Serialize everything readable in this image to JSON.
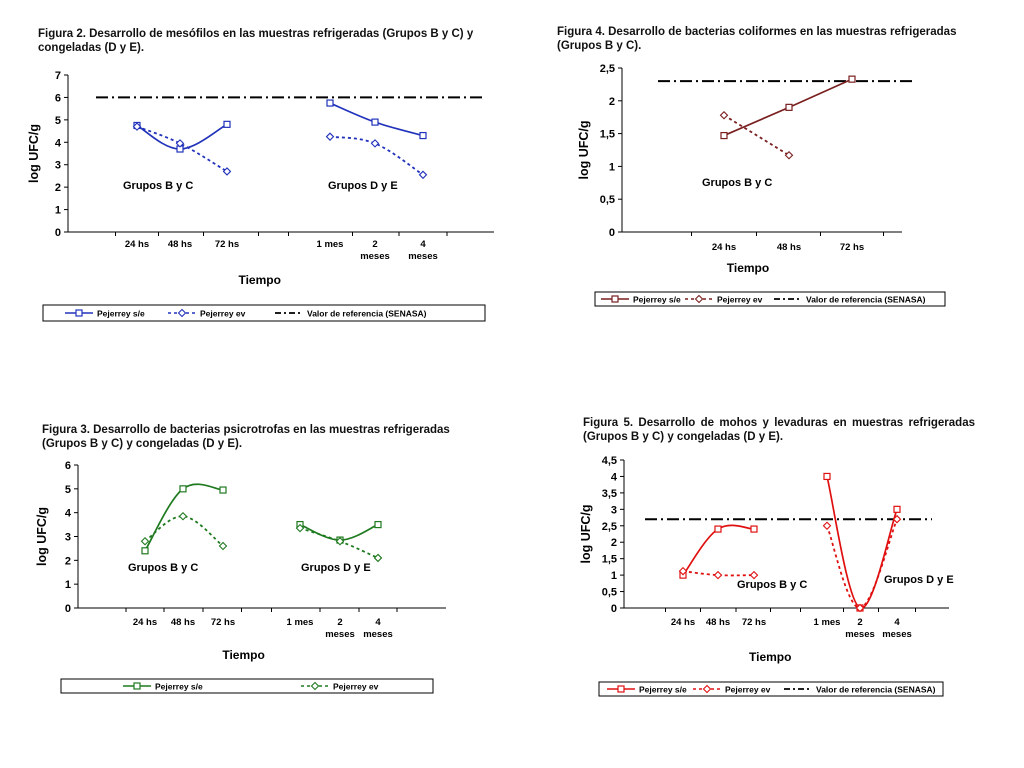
{
  "captions": {
    "fig2": "Figura 2. Desarrollo de mesófilos en las muestras refrigeradas (Grupos B y C) y congeladas (D y E).",
    "fig4": "Figura 4. Desarrollo de bacterias coliformes en las muestras refrigeradas (Grupos B y C).",
    "fig3": "Figura 3. Desarrollo de bacterias psicrotrofas en las muestras refrigeradas (Grupos B y C) y congeladas (D y E).",
    "fig5": "Figura 5. Desarrollo de mohos y levaduras en muestras refrigeradas (Grupos B y C) y congeladas (D y E)."
  },
  "chart_data": [
    {
      "id": "fig2",
      "type": "line",
      "color": "#2233bb",
      "xlabel": "Tiempo",
      "ylabel": "log UFC/g",
      "ylim": [
        0,
        7
      ],
      "yticks": [
        "0",
        "1",
        "2",
        "3",
        "4",
        "5",
        "6",
        "7"
      ],
      "categories": [
        "24 hs",
        "48 hs",
        "72 hs",
        "1 mes",
        "2 meses",
        "4 meses"
      ],
      "groups": [
        "Grupos B y C",
        "Grupos D y E"
      ],
      "series": [
        {
          "name": "Pejerrey s/e",
          "style": "solid",
          "marker": "square",
          "values": [
            4.75,
            3.7,
            4.8,
            5.75,
            4.9,
            4.3
          ]
        },
        {
          "name": "Pejerrey ev",
          "style": "dotted",
          "marker": "diamond",
          "values": [
            4.7,
            3.95,
            2.7,
            4.25,
            3.95,
            2.55
          ]
        }
      ],
      "reference": {
        "name": "Valor de referencia (SENASA)",
        "value": 6
      },
      "legend": [
        "Pejerrey s/e",
        "Pejerrey ev",
        "Valor de referencia (SENASA)"
      ]
    },
    {
      "id": "fig4",
      "type": "line",
      "color": "#7a1f1f",
      "xlabel": "Tiempo",
      "ylabel": "log UFC/g",
      "ylim": [
        0,
        2.5
      ],
      "yticks": [
        "0",
        "0,5",
        "1",
        "1,5",
        "2",
        "2,5"
      ],
      "categories": [
        "24 hs",
        "48 hs",
        "72 hs"
      ],
      "groups": [
        "Grupos B y C"
      ],
      "series": [
        {
          "name": "Pejerrey s/e",
          "style": "solid",
          "marker": "square",
          "values": [
            1.47,
            1.9,
            2.33
          ]
        },
        {
          "name": "Pejerrey ev",
          "style": "dotted",
          "marker": "diamond",
          "values": [
            1.78,
            1.17,
            null
          ]
        }
      ],
      "reference": {
        "name": "Valor de referencia (SENASA)",
        "value": 2.3
      },
      "legend": [
        "Pejerrey s/e",
        "Pejerrey ev",
        "Valor de referencia (SENASA)"
      ]
    },
    {
      "id": "fig3",
      "type": "line",
      "color": "#1f7a1f",
      "xlabel": "Tiempo",
      "ylabel": "log UFC/g",
      "ylim": [
        0,
        6
      ],
      "yticks": [
        "0",
        "1",
        "2",
        "3",
        "4",
        "5",
        "6"
      ],
      "categories": [
        "24 hs",
        "48 hs",
        "72 hs",
        "1 mes",
        "2 meses",
        "4 meses"
      ],
      "groups": [
        "Grupos B y C",
        "Grupos D y E"
      ],
      "series": [
        {
          "name": "Pejerrey s/e",
          "style": "solid",
          "marker": "square",
          "values": [
            2.4,
            5.0,
            4.95,
            3.5,
            2.85,
            3.5
          ]
        },
        {
          "name": "Pejerrey ev",
          "style": "dotted",
          "marker": "diamond",
          "values": [
            2.8,
            3.85,
            2.6,
            3.35,
            2.8,
            2.1
          ]
        }
      ],
      "reference": null,
      "legend": [
        "Pejerrey s/e",
        "Pejerrey ev"
      ]
    },
    {
      "id": "fig5",
      "type": "line",
      "color": "#e01010",
      "xlabel": "Tiempo",
      "ylabel": "log UFC/g",
      "ylim": [
        0,
        4.5
      ],
      "yticks": [
        "0",
        "0,5",
        "1",
        "1,5",
        "2",
        "2,5",
        "3",
        "3,5",
        "4",
        "4,5"
      ],
      "categories": [
        "24 hs",
        "48 hs",
        "72 hs",
        "1 mes",
        "2 meses",
        "4 meses"
      ],
      "groups": [
        "Grupos B y C",
        "Grupos D y E"
      ],
      "series": [
        {
          "name": "Pejerrey s/e",
          "style": "solid",
          "marker": "square",
          "values": [
            1.0,
            2.4,
            2.4,
            4.0,
            0.0,
            3.0
          ]
        },
        {
          "name": "Pejerrey ev",
          "style": "dotted",
          "marker": "diamond",
          "values": [
            1.12,
            1.0,
            1.0,
            2.5,
            0.0,
            2.7
          ]
        }
      ],
      "reference": {
        "name": "Valor de referencia (SENASA)",
        "value": 2.7
      },
      "legend": [
        "Pejerrey s/e",
        "Pejerrey ev",
        "Valor de referencia (SENASA)"
      ]
    }
  ]
}
